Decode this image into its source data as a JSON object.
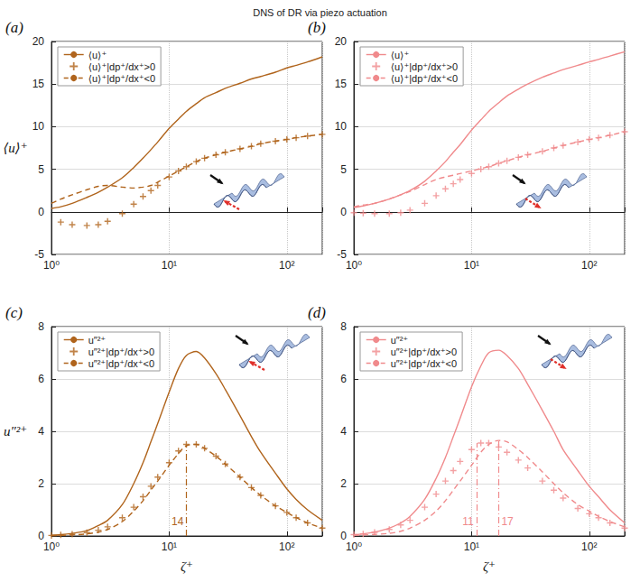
{
  "title": "DNS of DR via piezo actuation",
  "chart_data": [
    {
      "type": "line",
      "title": "(a)",
      "ylabel": "⟨u⟩⁺",
      "log": "x",
      "grid": true,
      "legend": "upper left",
      "x": [
        1,
        1.2,
        1.5,
        2,
        2.5,
        3,
        4,
        5,
        6,
        7,
        8,
        10,
        12,
        14,
        17,
        20,
        25,
        30,
        40,
        50,
        60,
        80,
        100,
        120,
        150,
        200
      ],
      "xlim": [
        1,
        200
      ],
      "xticks": [
        {
          "value": 1,
          "label": "10⁰"
        },
        {
          "value": 10,
          "label": "10¹"
        },
        {
          "value": 100,
          "label": "10²"
        }
      ],
      "ylim": [
        -5,
        20
      ],
      "yticks": [
        -5,
        0,
        5,
        10,
        15,
        20
      ],
      "series": [
        {
          "name": "⟨u⟩⁺",
          "type": "line",
          "line_style": "solid",
          "marker": "none",
          "color": "#b0641c",
          "values": [
            0.4,
            0.6,
            1.0,
            1.7,
            2.3,
            2.9,
            4.0,
            5.2,
            6.3,
            7.3,
            8.2,
            9.8,
            10.9,
            11.8,
            12.7,
            13.4,
            14.0,
            14.5,
            15.1,
            15.6,
            15.9,
            16.4,
            16.9,
            17.2,
            17.6,
            18.2
          ]
        },
        {
          "name": "⟨u⟩⁺|dp⁺/dx⁺>0",
          "type": "scatter",
          "line_style": "none",
          "marker": "plus",
          "color": "#b0641c",
          "values": [
            null,
            -1.2,
            -1.5,
            -1.6,
            -1.5,
            -1.1,
            -0.2,
            0.9,
            1.8,
            2.5,
            3.1,
            4.1,
            4.8,
            5.3,
            5.9,
            6.3,
            6.7,
            7.0,
            7.4,
            7.7,
            8.0,
            8.3,
            8.5,
            8.7,
            8.9,
            9.1
          ]
        },
        {
          "name": "⟨u⟩⁺|dp⁺/dx⁺<0",
          "type": "line",
          "line_style": "dashed",
          "marker": "none",
          "color": "#b0641c",
          "values": [
            1.0,
            1.5,
            2.0,
            2.6,
            3.0,
            3.1,
            2.9,
            2.8,
            2.9,
            3.1,
            3.5,
            4.2,
            4.8,
            5.3,
            5.9,
            6.3,
            6.7,
            7.0,
            7.4,
            7.7,
            8.0,
            8.3,
            8.5,
            8.7,
            8.9,
            9.1
          ]
        }
      ]
    },
    {
      "type": "line",
      "title": "(b)",
      "log": "x",
      "grid": true,
      "legend": "upper left",
      "x": [
        1,
        1.2,
        1.5,
        2,
        2.5,
        3,
        4,
        5,
        6,
        7,
        8,
        10,
        12,
        14,
        17,
        20,
        25,
        30,
        40,
        50,
        60,
        80,
        100,
        120,
        150,
        200
      ],
      "xlim": [
        1,
        200
      ],
      "xticks": [
        {
          "value": 1,
          "label": "10⁰"
        },
        {
          "value": 10,
          "label": "10¹"
        },
        {
          "value": 100,
          "label": "10²"
        }
      ],
      "ylim": [
        -5,
        20
      ],
      "yticks": [
        -5,
        0,
        5,
        10,
        15,
        20
      ],
      "series": [
        {
          "name": "⟨u⟩⁺",
          "type": "line",
          "line_style": "solid",
          "marker": "none",
          "color": "#f08a8c",
          "values": [
            0.5,
            0.7,
            1.0,
            1.5,
            2.0,
            2.5,
            3.6,
            4.8,
            5.9,
            7.0,
            7.9,
            9.6,
            10.8,
            11.8,
            12.8,
            13.6,
            14.4,
            15.0,
            15.8,
            16.3,
            16.7,
            17.2,
            17.6,
            17.9,
            18.3,
            18.8
          ]
        },
        {
          "name": "⟨u⟩⁺|dp⁺/dx⁺>0",
          "type": "scatter",
          "line_style": "none",
          "marker": "plus",
          "color": "#f08a8c",
          "values": [
            -0.1,
            -0.15,
            -0.2,
            -0.2,
            -0.1,
            0.2,
            1.0,
            1.9,
            2.7,
            3.3,
            3.8,
            4.5,
            5.0,
            5.3,
            5.7,
            6.0,
            6.4,
            6.7,
            7.1,
            7.5,
            7.8,
            8.2,
            8.5,
            8.7,
            9.0,
            9.4
          ]
        },
        {
          "name": "⟨u⟩⁺|dp⁺/dx⁺<0",
          "type": "line",
          "line_style": "dashed",
          "marker": "none",
          "color": "#f08a8c",
          "values": [
            0.6,
            0.8,
            1.0,
            1.5,
            2.0,
            2.4,
            3.2,
            3.8,
            4.1,
            4.3,
            4.5,
            4.8,
            5.1,
            5.3,
            5.7,
            6.0,
            6.4,
            6.7,
            7.1,
            7.5,
            7.8,
            8.2,
            8.5,
            8.7,
            9.0,
            9.4
          ]
        }
      ]
    },
    {
      "type": "line",
      "title": "(c)",
      "ylabel": "u″²⁺",
      "xlabel": "ζ⁺",
      "log": "x",
      "grid": true,
      "legend": "upper left",
      "x": [
        1,
        1.2,
        1.5,
        2,
        2.5,
        3,
        4,
        5,
        6,
        7,
        8,
        10,
        12,
        14,
        17,
        20,
        25,
        30,
        40,
        50,
        60,
        80,
        100,
        120,
        150,
        200
      ],
      "xlim": [
        1,
        200
      ],
      "xticks": [
        {
          "value": 1,
          "label": "10⁰"
        },
        {
          "value": 10,
          "label": "10¹"
        },
        {
          "value": 100,
          "label": "10²"
        }
      ],
      "ylim": [
        0,
        8
      ],
      "yticks": [
        0,
        2,
        4,
        6,
        8
      ],
      "annotations": [
        {
          "text": "14",
          "x": 14,
          "y": 3.5
        }
      ],
      "series": [
        {
          "name": "u″²⁺",
          "type": "line",
          "line_style": "solid",
          "marker": "none",
          "color": "#b0641c",
          "values": [
            0.03,
            0.05,
            0.1,
            0.2,
            0.4,
            0.6,
            1.2,
            2.0,
            2.8,
            3.6,
            4.3,
            5.5,
            6.4,
            6.9,
            7.05,
            6.8,
            6.2,
            5.6,
            4.6,
            3.8,
            3.2,
            2.4,
            1.8,
            1.4,
            1.0,
            0.6
          ]
        },
        {
          "name": "u″²⁺|dp⁺/dx⁺>0",
          "type": "scatter",
          "line_style": "none",
          "marker": "plus",
          "color": "#b0641c",
          "values": [
            0.02,
            0.04,
            0.07,
            0.13,
            0.22,
            0.35,
            0.7,
            1.1,
            1.5,
            1.9,
            2.25,
            2.8,
            3.25,
            3.5,
            3.5,
            3.35,
            3.05,
            2.75,
            2.25,
            1.85,
            1.55,
            1.15,
            0.9,
            0.7,
            0.5,
            0.3
          ]
        },
        {
          "name": "u″²⁺|dp⁺/dx⁺<0",
          "type": "line",
          "line_style": "dashed",
          "marker": "none",
          "color": "#b0641c",
          "values": [
            0.01,
            0.02,
            0.04,
            0.08,
            0.15,
            0.25,
            0.55,
            0.95,
            1.35,
            1.75,
            2.1,
            2.7,
            3.15,
            3.45,
            3.5,
            3.35,
            3.05,
            2.75,
            2.25,
            1.85,
            1.55,
            1.15,
            0.9,
            0.7,
            0.5,
            0.3
          ]
        }
      ]
    },
    {
      "type": "line",
      "title": "(d)",
      "xlabel": "ζ⁺",
      "log": "x",
      "grid": true,
      "legend": "upper left",
      "x": [
        1,
        1.2,
        1.5,
        2,
        2.5,
        3,
        4,
        5,
        6,
        7,
        8,
        10,
        12,
        14,
        17,
        20,
        25,
        30,
        40,
        50,
        60,
        80,
        100,
        120,
        150,
        200
      ],
      "xlim": [
        1,
        200
      ],
      "xticks": [
        {
          "value": 1,
          "label": "10⁰"
        },
        {
          "value": 10,
          "label": "10¹"
        },
        {
          "value": 100,
          "label": "10²"
        }
      ],
      "ylim": [
        0,
        8
      ],
      "yticks": [
        0,
        2,
        4,
        6,
        8
      ],
      "annotations": [
        {
          "text": "11",
          "x": 11,
          "y": 3.55
        },
        {
          "text": "17",
          "x": 17,
          "y": 3.65
        }
      ],
      "series": [
        {
          "name": "u″²⁺",
          "type": "line",
          "line_style": "solid",
          "marker": "none",
          "color": "#f08a8c",
          "values": [
            0.05,
            0.08,
            0.15,
            0.3,
            0.5,
            0.75,
            1.4,
            2.2,
            3.0,
            3.8,
            4.5,
            5.7,
            6.5,
            7.0,
            7.1,
            6.9,
            6.4,
            5.8,
            4.8,
            4.0,
            3.3,
            2.5,
            1.9,
            1.5,
            1.0,
            0.5
          ]
        },
        {
          "name": "u″²⁺|dp⁺/dx⁺>0",
          "type": "scatter",
          "line_style": "none",
          "marker": "plus",
          "color": "#f08a8c",
          "values": [
            0.05,
            0.08,
            0.14,
            0.25,
            0.42,
            0.6,
            1.1,
            1.6,
            2.1,
            2.5,
            2.85,
            3.3,
            3.55,
            3.55,
            3.4,
            3.2,
            2.9,
            2.6,
            2.1,
            1.75,
            1.45,
            1.05,
            0.85,
            0.7,
            0.5,
            0.3
          ]
        },
        {
          "name": "u″²⁺|dp⁺/dx⁺<0",
          "type": "line",
          "line_style": "dashed",
          "marker": "none",
          "color": "#f08a8c",
          "values": [
            0.02,
            0.04,
            0.06,
            0.1,
            0.18,
            0.3,
            0.6,
            0.95,
            1.35,
            1.75,
            2.1,
            2.7,
            3.2,
            3.5,
            3.65,
            3.6,
            3.3,
            3.0,
            2.45,
            2.0,
            1.65,
            1.2,
            0.95,
            0.75,
            0.55,
            0.35
          ]
        }
      ]
    }
  ]
}
